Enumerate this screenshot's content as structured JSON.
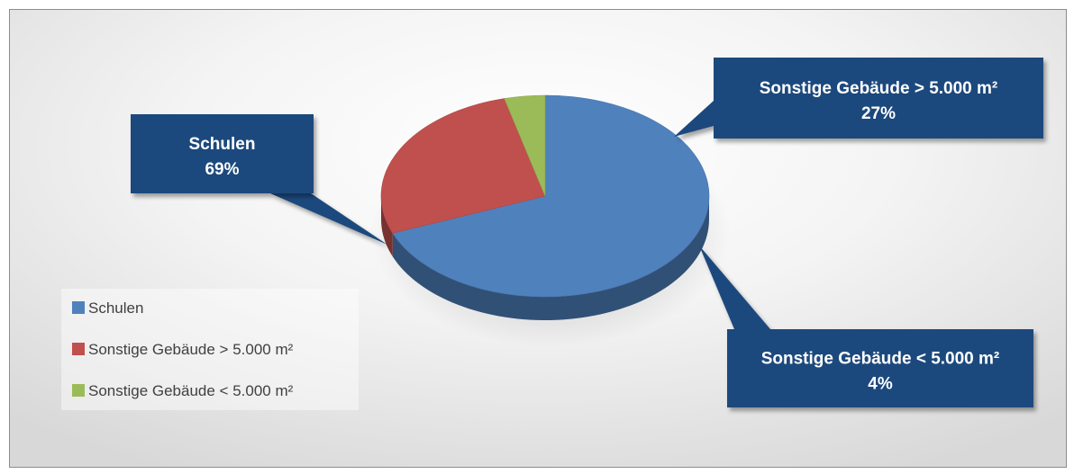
{
  "chart_data": {
    "type": "pie",
    "categories": [
      "Schulen",
      "Sonstige Gebäude > 5.000 m²",
      "Sonstige Gebäude < 5.000 m²"
    ],
    "values": [
      69,
      27,
      4
    ],
    "labels": [
      {
        "name": "Schulen",
        "percent": "69%"
      },
      {
        "name": "Sonstige Gebäude > 5.000 m²",
        "percent": "27%"
      },
      {
        "name": "Sonstige Gebäude < 5.000 m²",
        "percent": "4%"
      }
    ],
    "colors": [
      "#4F81BD",
      "#C0504D",
      "#9BBB59"
    ],
    "legend_position": "left",
    "title": ""
  }
}
